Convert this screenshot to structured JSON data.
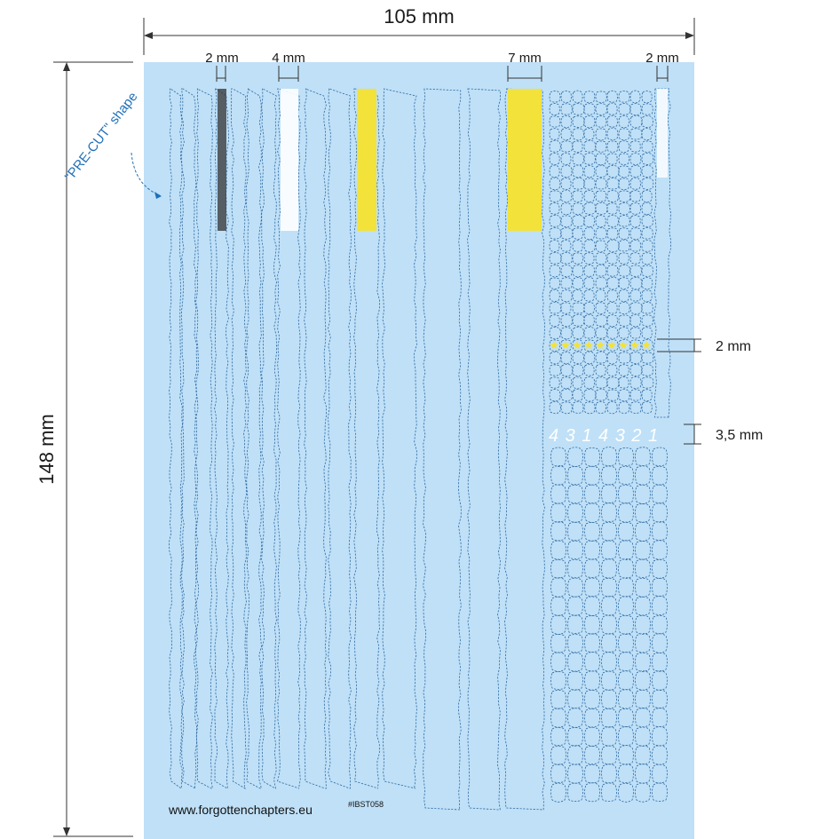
{
  "sheet": {
    "background": "#bfe0f7",
    "cut_color": "#2f6aa3",
    "yellow": "#f2e23a",
    "white": "#ffffff",
    "dark": "#333333"
  },
  "dimensions": {
    "width_label": "105 mm",
    "height_label": "148 mm",
    "strip_2mm_label": "2 mm",
    "strip_4mm_label": "4 mm",
    "strip_7mm_label": "7 mm",
    "strip_2mm_right_label": "2 mm",
    "star_row_label": "2 mm",
    "numeral_label": "3,5 mm"
  },
  "annotation": {
    "precut_label": "\"PRE-CUT\" shape"
  },
  "footer": {
    "website": "www.forgottenchapters.eu",
    "product_code": "#IBST058"
  },
  "numerals_sample": "4 3 1 4 3 2 1"
}
